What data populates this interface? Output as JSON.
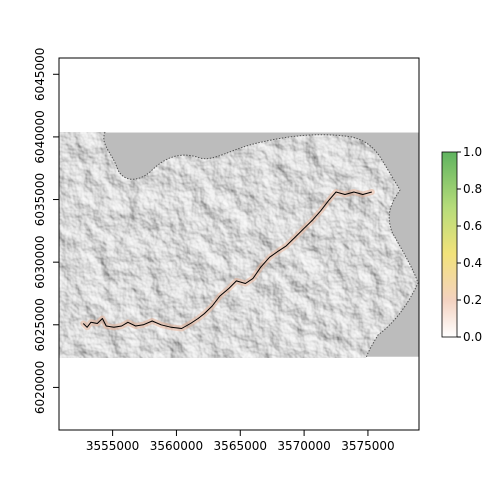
{
  "chart_data": {
    "type": "heatmap",
    "title": "",
    "xlabel": "",
    "ylabel": "",
    "xlim": [
      3550800,
      3579000
    ],
    "ylim": [
      6016600,
      6046300
    ],
    "x_ticks": [
      3555000,
      3560000,
      3565000,
      3570000,
      3575000
    ],
    "x_tick_labels": [
      "3555000",
      "3560000",
      "3565000",
      "3570000",
      "3575000"
    ],
    "y_ticks": [
      6020000,
      6025000,
      6030000,
      6035000,
      6040000,
      6045000
    ],
    "y_tick_labels": [
      "6020000",
      "6025000",
      "6030000",
      "6035000",
      "6040000",
      "6045000"
    ],
    "raster_extent": {
      "x": [
        3550800,
        3579000
      ],
      "y": [
        6022450,
        6040350
      ]
    },
    "colorbar": {
      "ticks": [
        0.0,
        0.2,
        0.4,
        0.6,
        0.8,
        1.0
      ],
      "tick_labels": [
        "0.0",
        "0.2",
        "0.4",
        "0.6",
        "0.8",
        "1.0"
      ],
      "colors": [
        "#ffffff",
        "#f4d2c0",
        "#f2e27a",
        "#b6dc7a",
        "#5fb35f"
      ]
    },
    "colors": {
      "sea": "#bcbcbc",
      "land": "#e2e2e2",
      "path": "#000000",
      "path_fill": "#e8b49a"
    },
    "path": [
      [
        3552700,
        6025100
      ],
      [
        3553000,
        6024800
      ],
      [
        3553300,
        6025200
      ],
      [
        3553800,
        6025100
      ],
      [
        3554200,
        6025500
      ],
      [
        3554500,
        6024900
      ],
      [
        3555100,
        6024800
      ],
      [
        3555700,
        6024900
      ],
      [
        3556200,
        6025200
      ],
      [
        3556800,
        6024900
      ],
      [
        3557400,
        6025000
      ],
      [
        3558100,
        6025300
      ],
      [
        3558800,
        6025000
      ],
      [
        3559600,
        6024800
      ],
      [
        3560400,
        6024700
      ],
      [
        3561100,
        6025100
      ],
      [
        3561700,
        6025500
      ],
      [
        3562200,
        6025900
      ],
      [
        3562800,
        6026500
      ],
      [
        3563400,
        6027300
      ],
      [
        3564100,
        6027900
      ],
      [
        3564700,
        6028500
      ],
      [
        3565400,
        6028300
      ],
      [
        3566000,
        6028700
      ],
      [
        3566600,
        6029600
      ],
      [
        3567300,
        6030400
      ],
      [
        3568000,
        6030900
      ],
      [
        3568600,
        6031300
      ],
      [
        3569300,
        6032000
      ],
      [
        3570000,
        6032700
      ],
      [
        3570700,
        6033400
      ],
      [
        3571300,
        6034100
      ],
      [
        3571900,
        6034900
      ],
      [
        3572500,
        6035600
      ],
      [
        3573200,
        6035400
      ],
      [
        3573900,
        6035600
      ],
      [
        3574600,
        6035400
      ],
      [
        3575300,
        6035600
      ]
    ]
  }
}
